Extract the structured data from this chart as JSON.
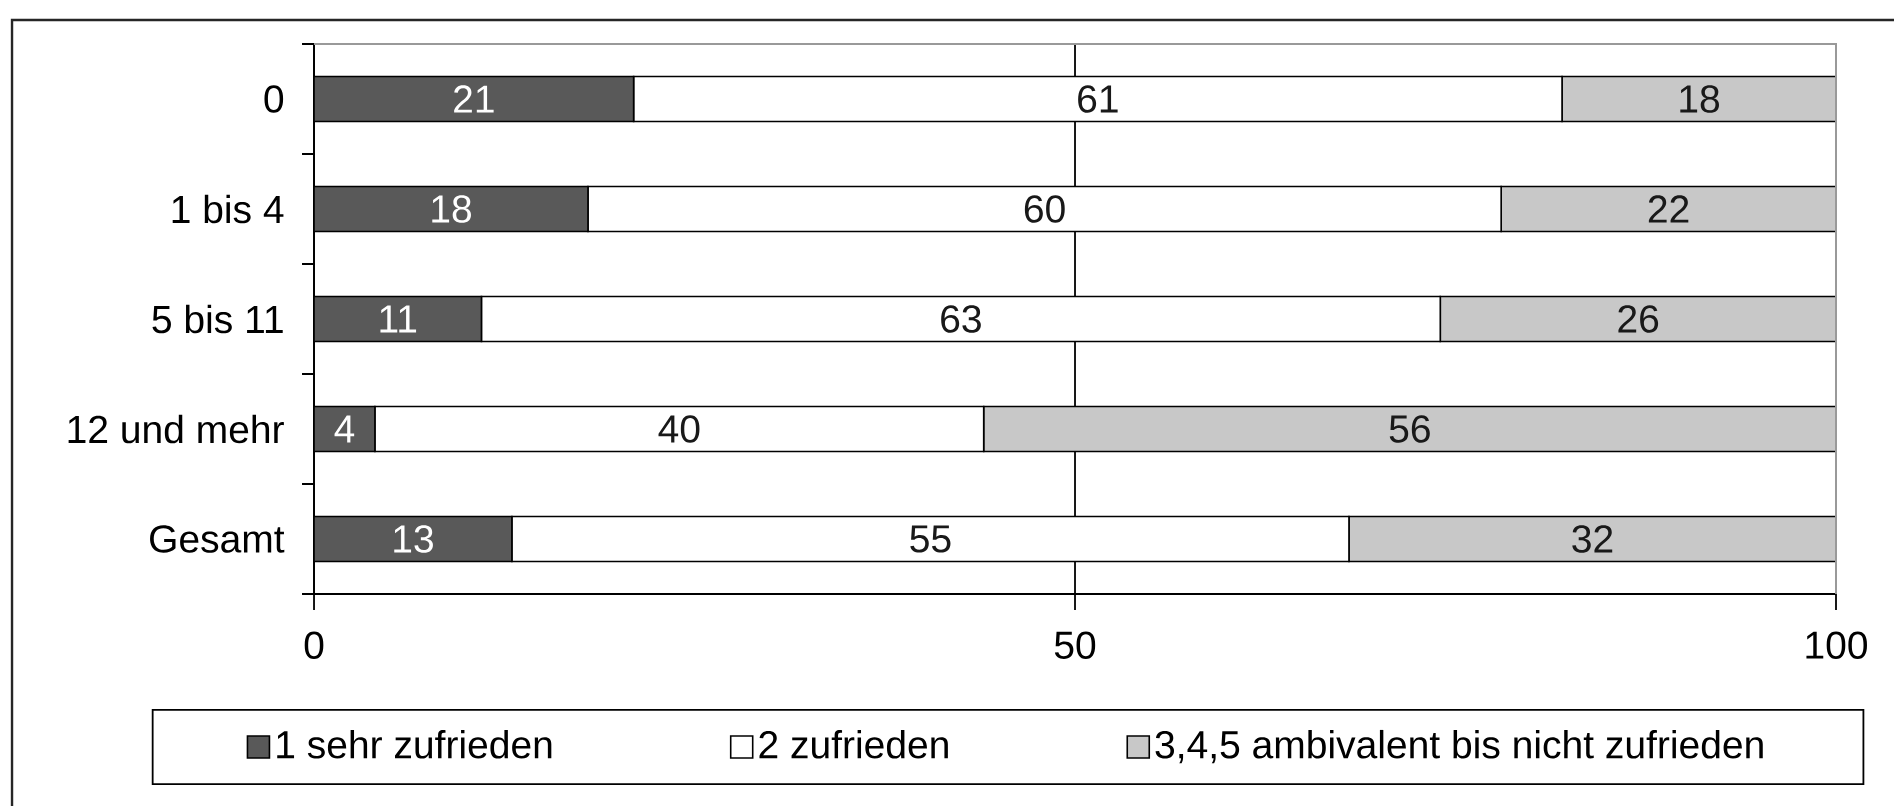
{
  "chart_data": {
    "type": "bar",
    "orientation": "horizontal",
    "stacked": true,
    "categories": [
      "0",
      "1 bis 4",
      "5 bis 11",
      "12 und mehr",
      "Gesamt"
    ],
    "series": [
      {
        "name": "1 sehr zufrieden",
        "color": "#595959",
        "values": [
          21,
          18,
          11,
          4,
          13
        ]
      },
      {
        "name": "2 zufrieden",
        "color": "#ffffff",
        "values": [
          61,
          60,
          63,
          40,
          55
        ]
      },
      {
        "name": "3,4,5 ambivalent bis nicht zufrieden",
        "color": "#c8c8c8",
        "values": [
          18,
          22,
          26,
          56,
          32
        ]
      }
    ],
    "xlim": [
      0,
      100
    ],
    "xticks": [
      0,
      50,
      100
    ],
    "grid": "x",
    "legend": "bottom",
    "data_labels": true
  }
}
